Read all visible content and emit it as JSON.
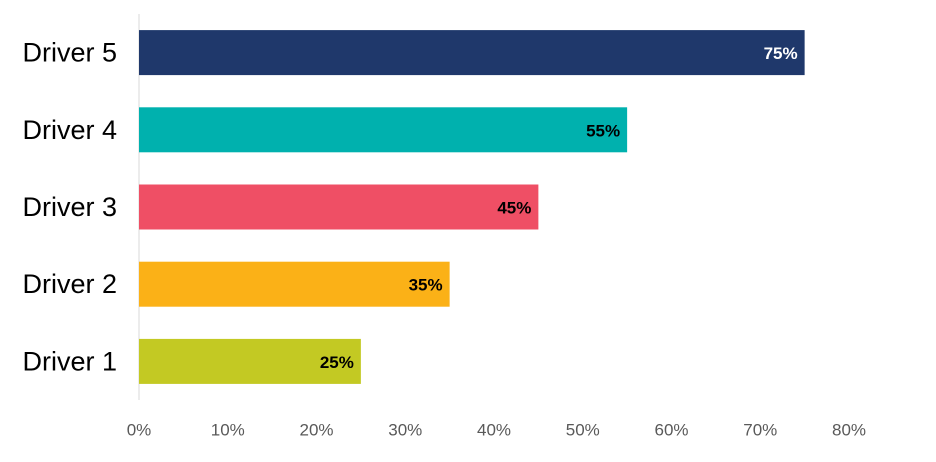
{
  "chart_data": {
    "type": "bar",
    "orientation": "horizontal",
    "categories": [
      "Driver 5",
      "Driver 4",
      "Driver 3",
      "Driver 2",
      "Driver 1"
    ],
    "values": [
      75,
      55,
      45,
      35,
      25
    ],
    "data_labels": [
      "75%",
      "55%",
      "45%",
      "35%",
      "25%"
    ],
    "colors": [
      "#1F386B",
      "#00B1AE",
      "#EF4F65",
      "#FBB117",
      "#C3C923"
    ],
    "label_colors": [
      "#FFFFFF",
      "#000000",
      "#000000",
      "#000000",
      "#000000"
    ],
    "xlim": [
      0,
      80
    ],
    "x_ticks": [
      0,
      10,
      20,
      30,
      40,
      50,
      60,
      70,
      80
    ],
    "x_tick_labels": [
      "0%",
      "10%",
      "20%",
      "30%",
      "40%",
      "50%",
      "60%",
      "70%",
      "80%"
    ],
    "grid": false,
    "legend": "none"
  }
}
